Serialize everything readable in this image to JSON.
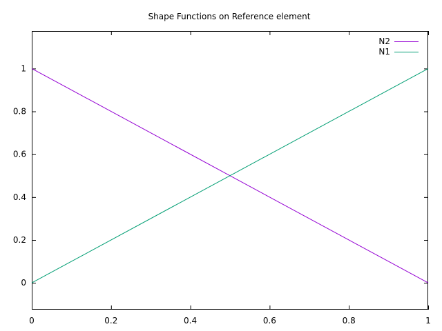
{
  "chart_data": {
    "type": "line",
    "title": "Shape Functions on Reference element",
    "xlabel": "",
    "ylabel": "",
    "xlim": [
      0,
      1
    ],
    "ylim": [
      -0.125,
      1.175
    ],
    "x_ticks": [
      0,
      0.2,
      0.4,
      0.6,
      0.8,
      1
    ],
    "x_tick_labels": [
      "0",
      "0.2",
      "0.4",
      "0.6",
      "0.8",
      "1"
    ],
    "y_ticks": [
      0,
      0.2,
      0.4,
      0.6,
      0.8,
      1
    ],
    "y_tick_labels": [
      "0",
      "0.2",
      "0.4",
      "0.6",
      "0.8",
      "1"
    ],
    "grid": false,
    "legend_position": "top-right",
    "series": [
      {
        "name": "N2",
        "color": "#9400d3",
        "x": [
          0,
          1
        ],
        "y": [
          1,
          0
        ]
      },
      {
        "name": "N1",
        "color": "#009e73",
        "x": [
          0,
          1
        ],
        "y": [
          0,
          1
        ]
      }
    ]
  }
}
